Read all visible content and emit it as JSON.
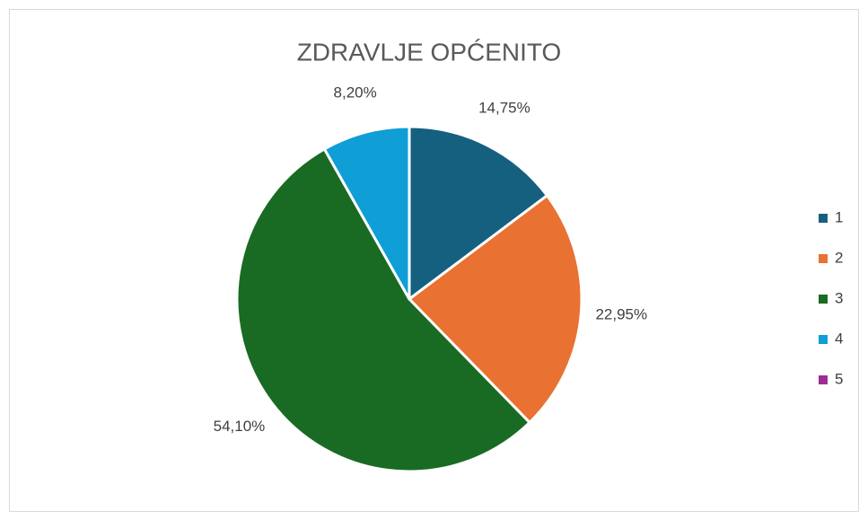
{
  "chart_data": {
    "type": "pie",
    "title": "ZDRAVLJE OPĆENITO",
    "categories": [
      "1",
      "2",
      "3",
      "4",
      "5"
    ],
    "values": [
      14.75,
      22.95,
      54.1,
      8.2,
      0
    ],
    "value_labels": [
      "14,75%",
      "22,95%",
      "54,10%",
      "8,20%",
      null
    ],
    "colors": [
      "#15607f",
      "#e97132",
      "#196b24",
      "#0f9ed5",
      "#a02b93"
    ],
    "legend": "right"
  }
}
